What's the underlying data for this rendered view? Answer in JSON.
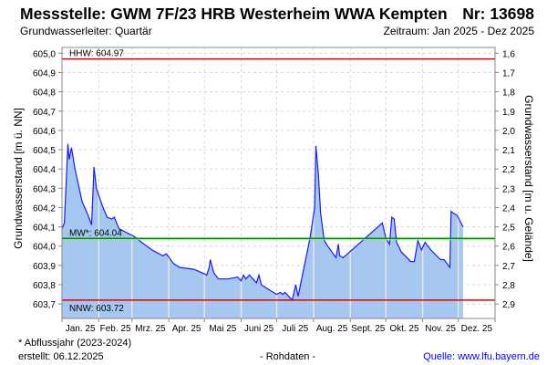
{
  "header": {
    "title": "Messstelle: GWM 7F/23 HRB Westerheim WWA Kempten",
    "number": "Nr: 13698",
    "aquifer": "Grundwasserleiter: Quartär",
    "period": "Zeitraum: Jan 2025 - Dez 2025"
  },
  "footer": {
    "note": "* Abflussjahr (2023-2024)",
    "created": "erstellt:  06.12.2025",
    "raw": "- Rohdaten -",
    "source": "Quelle: www.lfu.bayern.de"
  },
  "colors": {
    "series_line": "#1a1aff",
    "series_fill": "#a6c8f0",
    "hhw": "#e00000",
    "nnw": "#e00000",
    "mw": "#009000"
  },
  "chart_data": {
    "type": "area",
    "ylabel": "Grundwasserstand [m ü. NN]",
    "ylabel_right": "Grundwasserstand [m u. Gelände]",
    "ylim": [
      603.625,
      605.03
    ],
    "xlim_days": [
      0,
      365
    ],
    "yticks": [
      603.7,
      603.8,
      603.9,
      604.0,
      604.1,
      604.2,
      604.3,
      604.4,
      604.5,
      604.6,
      604.7,
      604.8,
      604.9,
      605.0
    ],
    "ytick_labels": [
      "603,7",
      "603,8",
      "603,9",
      "604,0",
      "604,1",
      "604,2",
      "604,3",
      "604,4",
      "604,5",
      "604,6",
      "604,7",
      "604,8",
      "604,9",
      "605,0"
    ],
    "ytick_labels_right": [
      "2,9",
      "2,8",
      "2,7",
      "2,6",
      "2,5",
      "2,4",
      "2,3",
      "2,2",
      "2,1",
      "2,0",
      "1,9",
      "1,8",
      "1,7",
      "1,6"
    ],
    "month_starts": [
      0,
      31,
      59,
      90,
      120,
      151,
      181,
      212,
      243,
      273,
      304,
      334,
      365
    ],
    "month_labels": [
      "Jan. 25",
      "Feb. 25",
      "Mrz. 25",
      "Apr. 25",
      "Mai 25",
      "Juni 25",
      "Juli 25",
      "Aug. 25",
      "Sept. 25",
      "Okt. 25",
      "Nov. 25",
      "Dez. 25"
    ],
    "reference_lines": [
      {
        "name": "HHW",
        "label": "HHW: 604.97",
        "value": 604.97
      },
      {
        "name": "MW",
        "label": "MW*: 604.04",
        "value": 604.04
      },
      {
        "name": "NNW",
        "label": "NNW: 603.72",
        "value": 603.72
      }
    ],
    "series": [
      {
        "name": "Grundwasserstand",
        "x_day": [
          0,
          2,
          5,
          6,
          8,
          11,
          17,
          22,
          25,
          27,
          29,
          34,
          38,
          42,
          44,
          48,
          61,
          67,
          76,
          85,
          88,
          94,
          99,
          111,
          115,
          122,
          124,
          125,
          128,
          132,
          140,
          148,
          151,
          153,
          155,
          158,
          161,
          164,
          166,
          168,
          173,
          181,
          184,
          186,
          188,
          191,
          194,
          197,
          199,
          204,
          209,
          213,
          214,
          216,
          218,
          221,
          224,
          231,
          233,
          234,
          237,
          270,
          273,
          276,
          278,
          280,
          282,
          286,
          294,
          297,
          300,
          303,
          306,
          311,
          319,
          322,
          327,
          328,
          330,
          333,
          338
        ],
        "values": [
          604.09,
          604.12,
          604.53,
          604.45,
          604.51,
          604.4,
          604.23,
          604.16,
          604.11,
          604.41,
          604.3,
          604.21,
          604.15,
          604.14,
          604.15,
          604.09,
          604.05,
          604.02,
          603.98,
          603.95,
          603.96,
          603.91,
          603.89,
          603.88,
          603.87,
          603.85,
          603.89,
          603.93,
          603.86,
          603.83,
          603.83,
          603.84,
          603.82,
          603.85,
          603.83,
          603.85,
          603.83,
          603.81,
          603.85,
          603.8,
          603.78,
          603.75,
          603.76,
          603.75,
          603.76,
          603.74,
          603.72,
          603.8,
          603.74,
          603.89,
          604.04,
          604.2,
          604.52,
          604.38,
          604.17,
          604.03,
          604.0,
          603.94,
          604.01,
          603.95,
          603.94,
          604.12,
          604.04,
          604.01,
          604.15,
          604.14,
          604.02,
          603.97,
          603.92,
          603.92,
          604.03,
          603.98,
          604.02,
          603.98,
          603.93,
          603.93,
          603.89,
          604.18,
          604.17,
          604.16,
          604.1
        ]
      }
    ]
  }
}
